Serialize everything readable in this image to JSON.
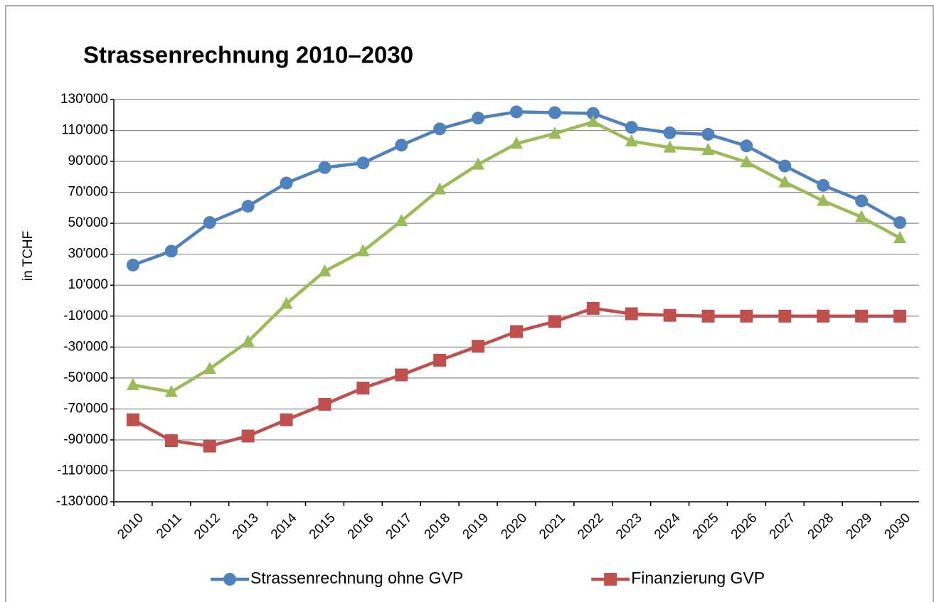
{
  "chart_data": {
    "type": "line",
    "title": "Strassenrechnung 2010–2030",
    "y_label": "in TCHF",
    "categories": [
      "2010",
      "2011",
      "2012",
      "2013",
      "2014",
      "2015",
      "2016",
      "2017",
      "2018",
      "2019",
      "2020",
      "2021",
      "2022",
      "2023",
      "2024",
      "2025",
      "2026",
      "2027",
      "2028",
      "2029",
      "2030"
    ],
    "series": [
      {
        "name": "Strassenrechnung ohne GVP",
        "color": "#4f81bd",
        "marker": "circle",
        "values": [
          23000,
          32000,
          50500,
          61000,
          76000,
          86000,
          89000,
          100500,
          111000,
          118000,
          122000,
          121500,
          121000,
          112000,
          108500,
          107500,
          100000,
          87000,
          74500,
          64500,
          50500
        ]
      },
      {
        "name": "Finanzierung GVP",
        "color": "#c0504d",
        "marker": "square",
        "values": [
          -77000,
          -90500,
          -94000,
          -87500,
          -77000,
          -67000,
          -56500,
          -48000,
          -38500,
          -29500,
          -20000,
          -13500,
          -5000,
          -8500,
          -9500,
          -10000,
          -10000,
          -10000,
          -10000,
          -10000,
          -10000
        ]
      },
      {
        "color": "#9bbb59",
        "marker": "triangle",
        "values": [
          -54500,
          -59000,
          -44000,
          -26500,
          -2000,
          19000,
          32000,
          51500,
          72000,
          88000,
          101500,
          108000,
          115500,
          103000,
          99000,
          97500,
          89500,
          76500,
          64500,
          54000,
          40500
        ]
      }
    ],
    "ylim": [
      -130000,
      130000
    ],
    "yticks": [
      {
        "value": -130000,
        "label": "-130'000"
      },
      {
        "value": -110000,
        "label": "-110'000"
      },
      {
        "value": -90000,
        "label": "-90'000"
      },
      {
        "value": -70000,
        "label": "-70'000"
      },
      {
        "value": -50000,
        "label": "-50'000"
      },
      {
        "value": -30000,
        "label": "-30'000"
      },
      {
        "value": -10000,
        "label": "-10'000"
      },
      {
        "value": 10000,
        "label": "10'000"
      },
      {
        "value": 30000,
        "label": "30'000"
      },
      {
        "value": 50000,
        "label": "50'000"
      },
      {
        "value": 70000,
        "label": "70'000"
      },
      {
        "value": 90000,
        "label": "90'000"
      },
      {
        "value": 110000,
        "label": "110'000"
      },
      {
        "value": 130000,
        "label": "130'000"
      }
    ],
    "grid": true
  }
}
